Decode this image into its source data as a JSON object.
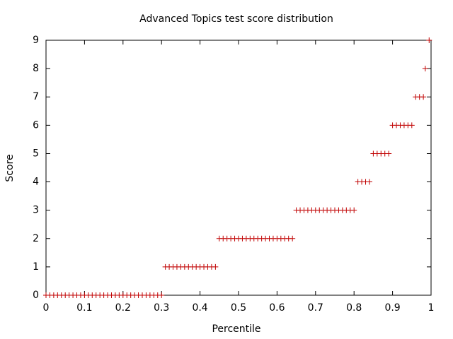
{
  "chart_data": {
    "type": "scatter",
    "title": "Advanced Topics test score distribution",
    "x_label": "Percentile",
    "y_label": "Score",
    "color": "#c00000",
    "x": [
      0,
      0.01,
      0.02,
      0.03,
      0.04,
      0.05,
      0.06,
      0.07,
      0.08,
      0.09,
      0.1,
      0.11,
      0.12,
      0.13,
      0.14,
      0.15,
      0.16,
      0.17,
      0.18,
      0.19,
      0.2,
      0.21,
      0.22,
      0.23,
      0.24,
      0.25,
      0.26,
      0.27,
      0.28,
      0.29,
      0.3,
      0.31,
      0.32,
      0.33,
      0.34,
      0.35,
      0.36,
      0.37,
      0.38,
      0.39,
      0.4,
      0.41,
      0.42,
      0.43,
      0.44,
      0.45,
      0.46,
      0.47,
      0.48,
      0.49,
      0.5,
      0.51,
      0.52,
      0.53,
      0.54,
      0.55,
      0.56,
      0.57,
      0.58,
      0.59,
      0.6,
      0.61,
      0.62,
      0.63,
      0.64,
      0.65,
      0.66,
      0.67,
      0.68,
      0.69,
      0.7,
      0.71,
      0.72,
      0.73,
      0.74,
      0.75,
      0.76,
      0.77,
      0.78,
      0.79,
      0.8,
      0.81,
      0.82,
      0.83,
      0.84,
      0.85,
      0.86,
      0.87,
      0.88,
      0.89,
      0.9,
      0.91,
      0.92,
      0.93,
      0.94,
      0.95,
      0.96,
      0.97,
      0.98,
      0.985,
      0.995
    ],
    "values": [
      0,
      0,
      0,
      0,
      0,
      0,
      0,
      0,
      0,
      0,
      0,
      0,
      0,
      0,
      0,
      0,
      0,
      0,
      0,
      0,
      0,
      0,
      0,
      0,
      0,
      0,
      0,
      0,
      0,
      0,
      0,
      1,
      1,
      1,
      1,
      1,
      1,
      1,
      1,
      1,
      1,
      1,
      1,
      1,
      1,
      2,
      2,
      2,
      2,
      2,
      2,
      2,
      2,
      2,
      2,
      2,
      2,
      2,
      2,
      2,
      2,
      2,
      2,
      2,
      2,
      3,
      3,
      3,
      3,
      3,
      3,
      3,
      3,
      3,
      3,
      3,
      3,
      3,
      3,
      3,
      3,
      4,
      4,
      4,
      4,
      5,
      5,
      5,
      5,
      5,
      6,
      6,
      6,
      6,
      6,
      6,
      7,
      7,
      7,
      8,
      9
    ],
    "xlim": [
      0,
      1
    ],
    "xticks": [
      0,
      0.1,
      0.2,
      0.3,
      0.4,
      0.5,
      0.6,
      0.7,
      0.8,
      0.9,
      1
    ],
    "ylim": [
      0,
      9
    ],
    "yticks": [
      0,
      1,
      2,
      3,
      4,
      5,
      6,
      7,
      8,
      9
    ]
  }
}
